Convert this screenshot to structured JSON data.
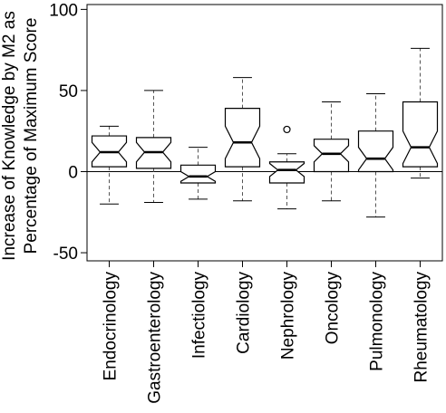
{
  "chart_data": {
    "type": "box",
    "ylabel": "Increase of Knowledge by M2 as Percentage of Maximum Score",
    "ylabel_lines": [
      "Increase of Knowledge by M2 as",
      "Percentage of Maximum Score"
    ],
    "ylim": [
      -55,
      103
    ],
    "yticks": [
      -50,
      0,
      50,
      100
    ],
    "ytick_labels": [
      "-50",
      "0",
      "50",
      "100"
    ],
    "reference_line_y": 0,
    "notched": true,
    "categories": [
      "Endocrinology",
      "Gastroenterology",
      "Infectiology",
      "Cardiology",
      "Nephrology",
      "Oncology",
      "Pulmonology",
      "Rheumatology"
    ],
    "boxes": [
      {
        "category": "Endocrinology",
        "whisker_low": -20,
        "q1": 3,
        "median": 12,
        "q3": 22,
        "whisker_high": 28,
        "notch_low": 6,
        "notch_high": 18,
        "outliers": []
      },
      {
        "category": "Gastroenterology",
        "whisker_low": -19,
        "q1": 2,
        "median": 12,
        "q3": 21,
        "whisker_high": 50,
        "notch_low": 6,
        "notch_high": 18,
        "outliers": []
      },
      {
        "category": "Infectiology",
        "whisker_low": -17,
        "q1": -7,
        "median": -3,
        "q3": 4,
        "whisker_high": 15,
        "notch_low": -6,
        "notch_high": 0,
        "outliers": []
      },
      {
        "category": "Cardiology",
        "whisker_low": -18,
        "q1": 3,
        "median": 18,
        "q3": 39,
        "whisker_high": 58,
        "notch_low": 8,
        "notch_high": 28,
        "outliers": []
      },
      {
        "category": "Nephrology",
        "whisker_low": -23,
        "q1": -7,
        "median": 1,
        "q3": 6,
        "whisker_high": 11,
        "notch_low": -3,
        "notch_high": 5,
        "outliers": [
          26
        ]
      },
      {
        "category": "Oncology",
        "whisker_low": -18,
        "q1": 0,
        "median": 11,
        "q3": 20,
        "whisker_high": 43,
        "notch_low": 6,
        "notch_high": 16,
        "outliers": []
      },
      {
        "category": "Pulmonology",
        "whisker_low": -28,
        "q1": 0,
        "median": 8,
        "q3": 25,
        "whisker_high": 48,
        "notch_low": 1,
        "notch_high": 15,
        "outliers": []
      },
      {
        "category": "Rheumatology",
        "whisker_low": -4,
        "q1": 3,
        "median": 15,
        "q3": 43,
        "whisker_high": 76,
        "notch_low": 5,
        "notch_high": 25,
        "outliers": []
      }
    ]
  }
}
